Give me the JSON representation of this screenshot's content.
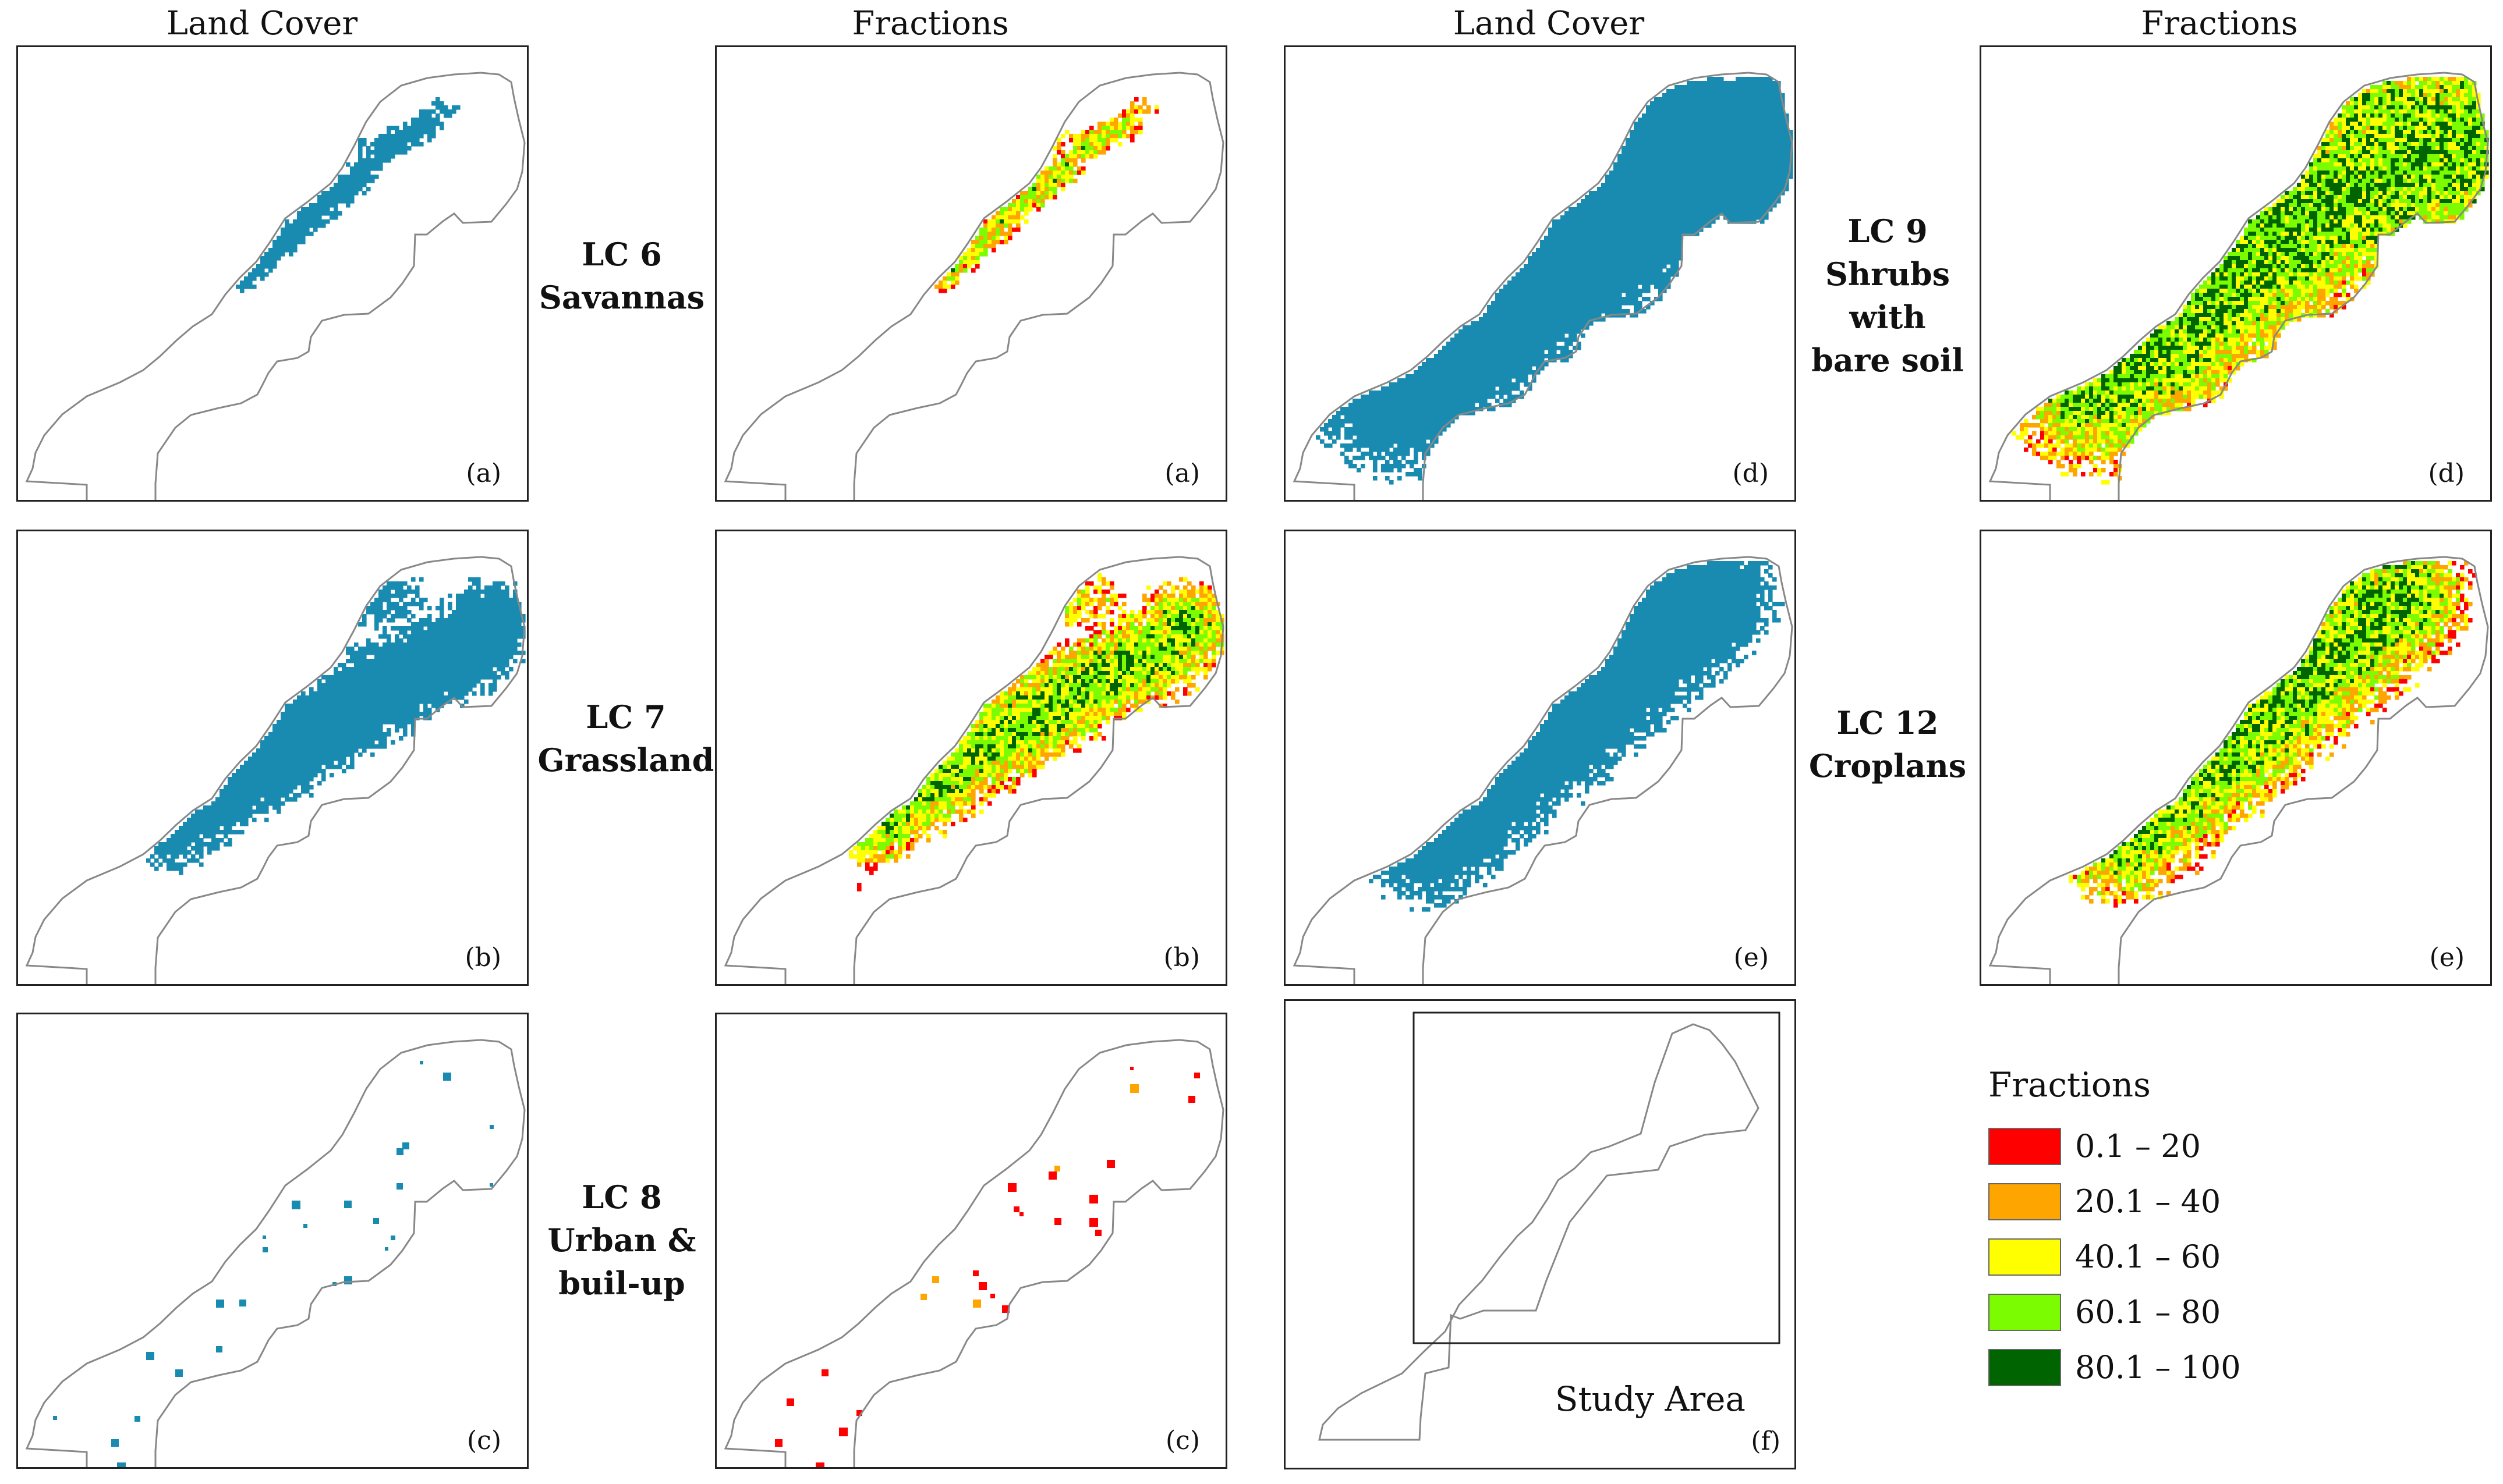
{
  "column_titles": [
    "Land Cover",
    "Fractions",
    "Land Cover",
    "Fractions"
  ],
  "class_labels": {
    "lc6": [
      "LC 6",
      "Savannas"
    ],
    "lc7": [
      "LC 7",
      "Grassland"
    ],
    "lc8": [
      "LC 8",
      "Urban &",
      "buil-up"
    ],
    "lc9": [
      "LC 9",
      "Shrubs with",
      "bare soil"
    ],
    "lc12": [
      "LC 12",
      "Croplans"
    ]
  },
  "panel_labels": {
    "a": "(a)",
    "b": "(b)",
    "c": "(c)",
    "d": "(d)",
    "e": "(e)",
    "f": "(f)"
  },
  "study_area_label": "Study Area",
  "legend": {
    "title": "Fractions",
    "items": [
      {
        "label": "0.1 – 20",
        "color": "#ff0000"
      },
      {
        "label": "20.1 – 40",
        "color": "#ffa500"
      },
      {
        "label": "40.1 – 60",
        "color": "#ffff00"
      },
      {
        "label": "60.1 – 80",
        "color": "#7cfc00"
      },
      {
        "label": "80.1 – 100",
        "color": "#006400"
      }
    ]
  },
  "colors": {
    "land_cover": "#1a8bb0",
    "outline": "#888888"
  }
}
